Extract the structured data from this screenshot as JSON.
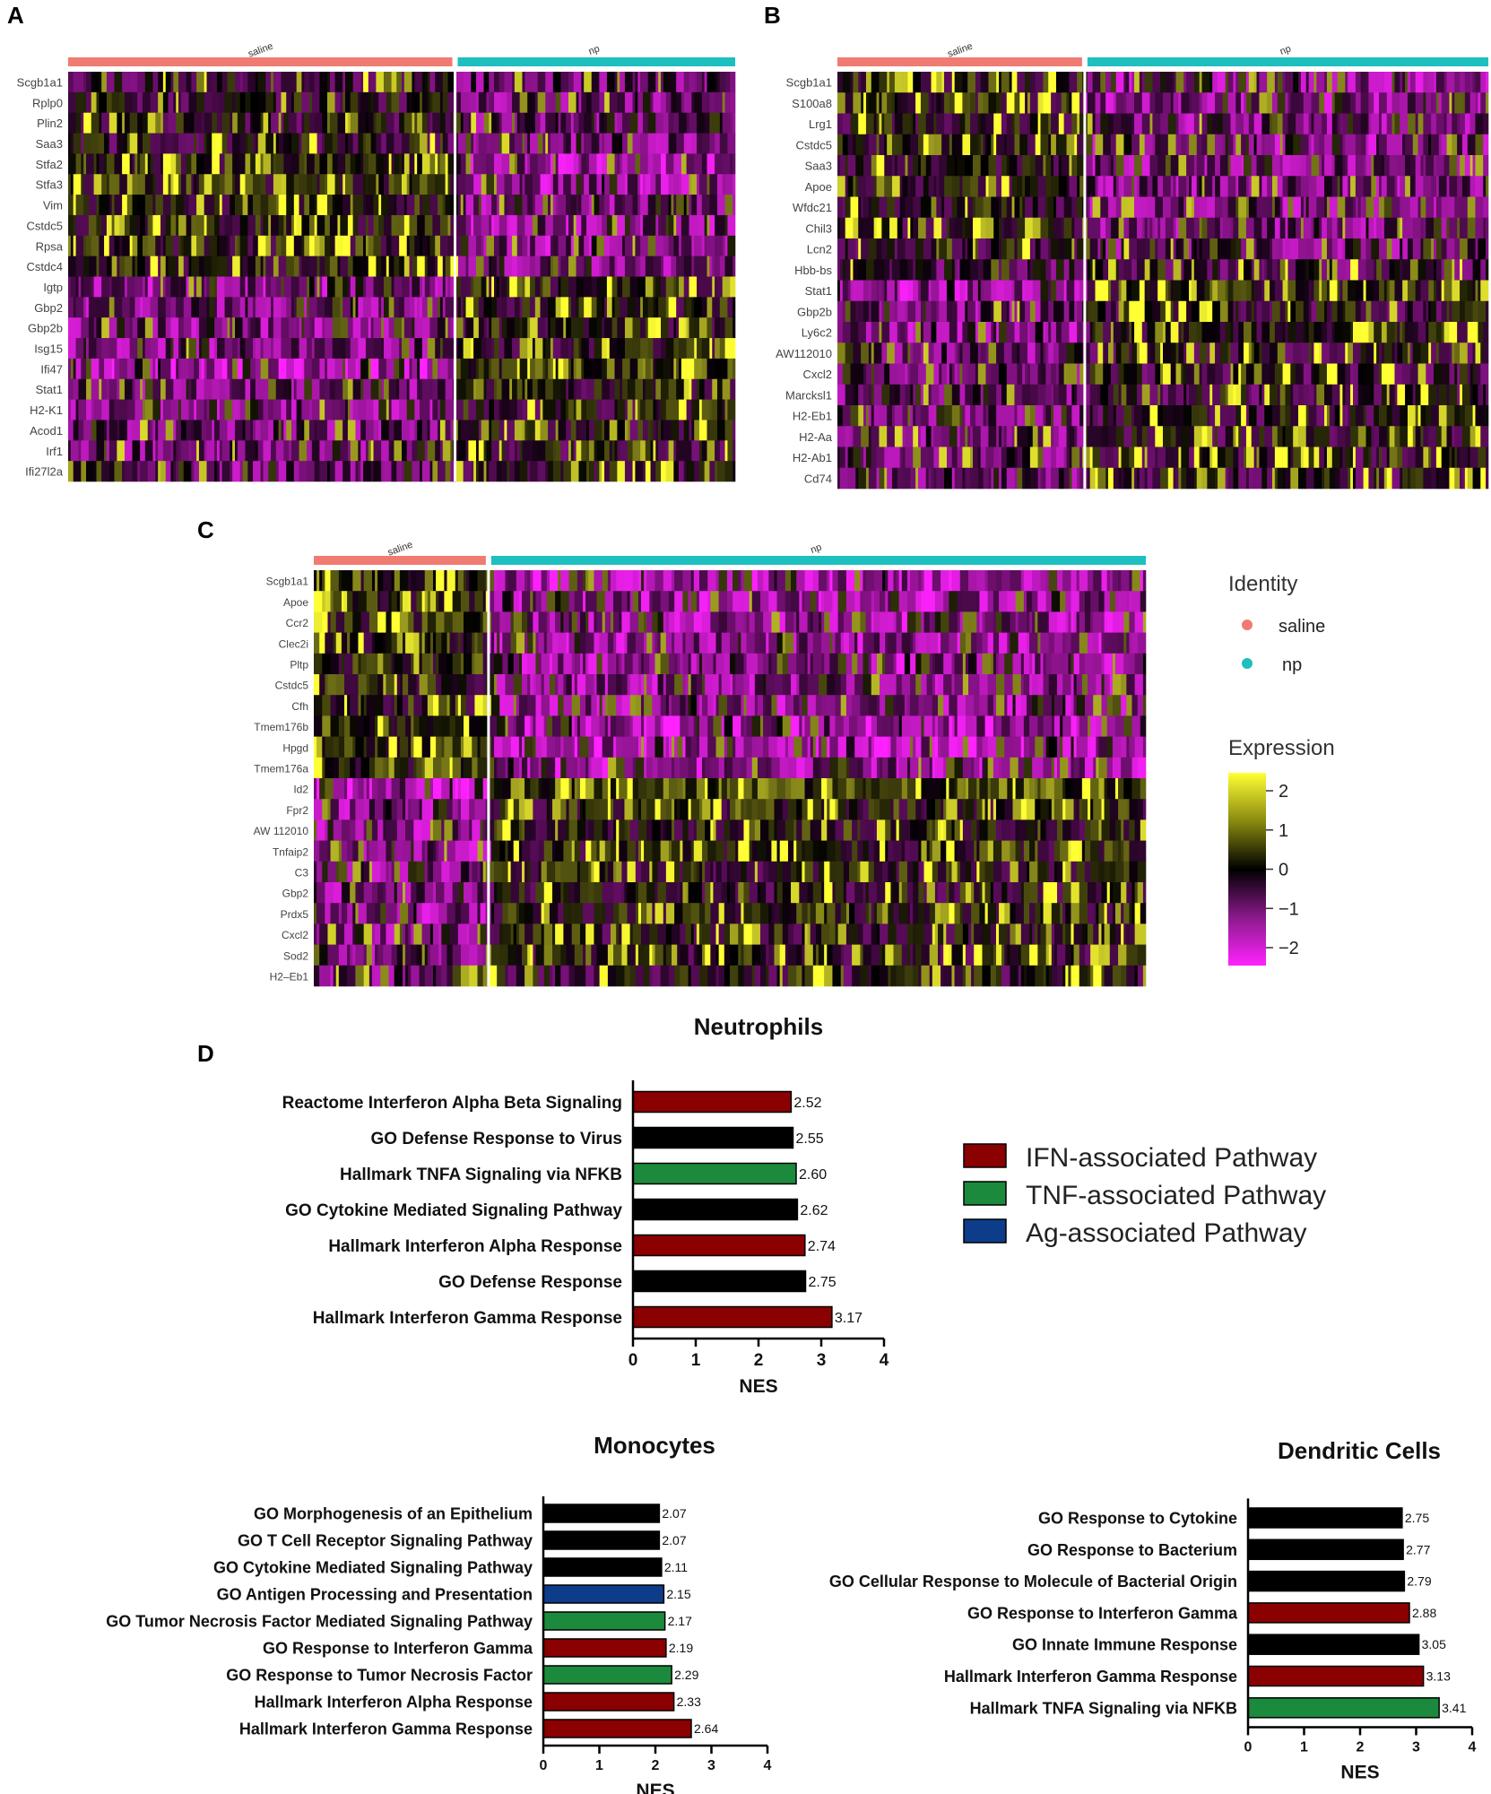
{
  "colors": {
    "saline": "#f07b72",
    "np": "#1dbfbf",
    "ifn": "#8b0000",
    "tnf": "#1b8a3c",
    "ag": "#0d3d8a",
    "other": "#000000",
    "scale_high": "#ffff33",
    "scale_mid": "#000000",
    "scale_low": "#ff22ff"
  },
  "identity_legend": {
    "title": "Identity",
    "items": [
      {
        "label": "saline",
        "color": "#f07b72"
      },
      {
        "label": "np",
        "color": "#1dbfbf"
      }
    ]
  },
  "expression_legend": {
    "title": "Expression",
    "ticks": [
      "2",
      "1",
      "0",
      "−1",
      "−2"
    ]
  },
  "pathway_legend": [
    {
      "label": "IFN-associated Pathway",
      "color": "#8b0000"
    },
    {
      "label": "TNF-associated Pathway",
      "color": "#1b8a3c"
    },
    {
      "label": "Ag-associated Pathway",
      "color": "#0d3d8a"
    }
  ],
  "chart_data": [
    {
      "panel": "A",
      "type": "heatmap",
      "groups": [
        {
          "name": "saline",
          "fraction": 0.58
        },
        {
          "name": "np",
          "fraction": 0.42
        }
      ],
      "genes": [
        "Scgb1a1",
        "Rplp0",
        "Plin2",
        "Saa3",
        "Stfa2",
        "Stfa3",
        "Vim",
        "Cstdc5",
        "Rpsa",
        "Cstdc4",
        "Igtp",
        "Gbp2",
        "Gbp2b",
        "Isg15",
        "Ifi47",
        "Stat1",
        "H2-K1",
        "Acod1",
        "Irf1",
        "Ifi27l2a"
      ],
      "bias": [
        0.2,
        0.3,
        0.3,
        0.3,
        0.6,
        0.6,
        0.5,
        0.5,
        0.5,
        0.5,
        -0.5,
        -0.4,
        -0.4,
        -0.4,
        -0.8,
        -0.4,
        -0.4,
        -0.3,
        -0.3,
        -0.3
      ],
      "color_range": [
        -2,
        2
      ]
    },
    {
      "panel": "B",
      "type": "heatmap",
      "groups": [
        {
          "name": "saline",
          "fraction": 0.38
        },
        {
          "name": "np",
          "fraction": 0.62
        }
      ],
      "genes": [
        "Scgb1a1",
        "S100a8",
        "Lrg1",
        "Cstdc5",
        "Saa3",
        "Apoe",
        "Wfdc21",
        "Chil3",
        "Lcn2",
        "Hbb-bs",
        "Stat1",
        "Gbp2b",
        "Ly6c2",
        "AW112010",
        "Cxcl2",
        "Marcksl1",
        "H2-Eb1",
        "H2-Aa",
        "H2-Ab1",
        "Cd74"
      ],
      "bias": [
        0.5,
        0.5,
        0.4,
        0.5,
        0.4,
        0.4,
        0.4,
        0.4,
        0.3,
        0.0,
        -0.6,
        -0.3,
        -0.5,
        -0.3,
        -0.2,
        -0.2,
        -0.3,
        -0.3,
        -0.3,
        -0.3
      ],
      "color_range": [
        -2,
        2
      ]
    },
    {
      "panel": "C",
      "type": "heatmap",
      "groups": [
        {
          "name": "saline",
          "fraction": 0.21
        },
        {
          "name": "np",
          "fraction": 0.79
        }
      ],
      "genes": [
        "Scgb1a1",
        "Apoe",
        "Ccr2",
        "Clec2i",
        "Pltp",
        "Cstdc5",
        "Cfh",
        "Tmem176b",
        "Hpgd",
        "Tmem176a",
        "Id2",
        "Fpr2",
        "AW 112010",
        "Tnfaip2",
        "C3",
        "Gbp2",
        "Prdx5",
        "Cxcl2",
        "Sod2",
        "H2–Eb1"
      ],
      "bias": [
        0.7,
        0.6,
        0.6,
        0.6,
        0.6,
        0.5,
        0.5,
        0.7,
        0.7,
        0.6,
        -1.0,
        -0.5,
        -0.5,
        -0.5,
        -0.4,
        -0.4,
        -0.5,
        -0.4,
        -0.4,
        -0.3
      ],
      "color_range": [
        -2,
        2
      ]
    },
    {
      "panel": "D",
      "type": "bar",
      "orientation": "horizontal",
      "title": "Neutrophils",
      "xlabel": "NES",
      "xlim": [
        0,
        4
      ],
      "xticks": [
        "0",
        "1",
        "2",
        "3",
        "4"
      ],
      "categories": [
        "Reactome Interferon Alpha Beta Signaling",
        "GO Defense Response to Virus",
        "Hallmark TNFA Signaling via NFKB",
        "GO Cytokine Mediated Signaling Pathway",
        "Hallmark Interferon Alpha Response",
        "GO Defense Response",
        "Hallmark Interferon Gamma Response"
      ],
      "values": [
        2.52,
        2.55,
        2.6,
        2.62,
        2.74,
        2.75,
        3.17
      ],
      "labels": [
        "2.52",
        "2.55",
        "2.60",
        "2.62",
        "2.74",
        "2.75",
        "3.17"
      ],
      "bar_colors": [
        "#8b0000",
        "#000000",
        "#1b8a3c",
        "#000000",
        "#8b0000",
        "#000000",
        "#8b0000"
      ]
    },
    {
      "type": "bar",
      "orientation": "horizontal",
      "title": "Monocytes",
      "xlabel": "NES",
      "xlim": [
        0,
        4
      ],
      "xticks": [
        "0",
        "1",
        "2",
        "3",
        "4"
      ],
      "categories": [
        "GO Morphogenesis of an Epithelium",
        "GO T Cell Receptor Signaling Pathway",
        "GO Cytokine Mediated Signaling Pathway",
        "GO Antigen Processing and Presentation",
        "GO Tumor Necrosis Factor Mediated Signaling Pathway",
        "GO Response to Interferon Gamma",
        "GO Response to Tumor Necrosis Factor",
        "Hallmark Interferon Alpha Response",
        "Hallmark Interferon Gamma Response"
      ],
      "values": [
        2.07,
        2.07,
        2.11,
        2.15,
        2.17,
        2.19,
        2.29,
        2.33,
        2.64
      ],
      "labels": [
        "2.07",
        "2.07",
        "2.11",
        "2.15",
        "2.17",
        "2.19",
        "2.29",
        "2.33",
        "2.64"
      ],
      "bar_colors": [
        "#000000",
        "#000000",
        "#000000",
        "#0d3d8a",
        "#1b8a3c",
        "#8b0000",
        "#1b8a3c",
        "#8b0000",
        "#8b0000"
      ]
    },
    {
      "type": "bar",
      "orientation": "horizontal",
      "title": "Dendritic Cells",
      "xlabel": "NES",
      "xlim": [
        0,
        4
      ],
      "xticks": [
        "0",
        "1",
        "2",
        "3",
        "4"
      ],
      "categories": [
        "GO Response to Cytokine",
        "GO Response to Bacterium",
        "GO Cellular Response to Molecule of Bacterial Origin",
        "GO Response to Interferon Gamma",
        "GO Innate Immune Response",
        "Hallmark Interferon Gamma Response",
        "Hallmark TNFA Signaling via NFKB"
      ],
      "values": [
        2.75,
        2.77,
        2.79,
        2.88,
        3.05,
        3.13,
        3.41
      ],
      "labels": [
        "2.75",
        "2.77",
        "2.79",
        "2.88",
        "3.05",
        "3.13",
        "3.41"
      ],
      "bar_colors": [
        "#000000",
        "#000000",
        "#000000",
        "#8b0000",
        "#000000",
        "#8b0000",
        "#1b8a3c"
      ]
    }
  ]
}
